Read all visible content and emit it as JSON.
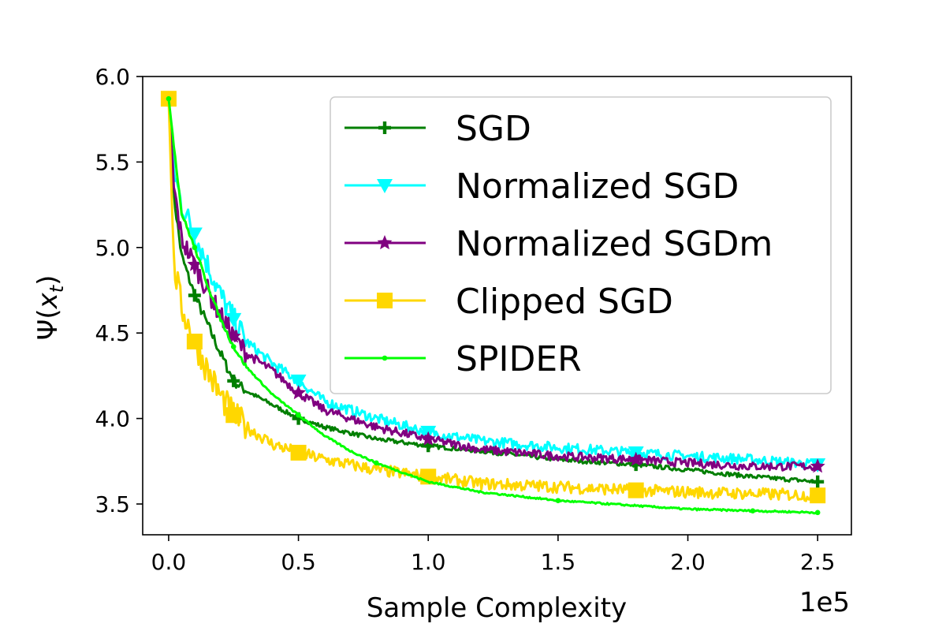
{
  "chart_data": {
    "type": "line",
    "title": "",
    "xlabel": "Sample Complexity",
    "ylabel": "Ψ(x_t)",
    "x_offset_label": "1e5",
    "xlim": [
      -0.1,
      2.63
    ],
    "ylim": [
      3.32,
      6.0
    ],
    "xticks": [
      0.0,
      0.5,
      1.0,
      1.5,
      2.0,
      2.5
    ],
    "xtick_labels": [
      "0.0",
      "0.5",
      "1.0",
      "1.5",
      "2.0",
      "2.5"
    ],
    "yticks": [
      3.5,
      4.0,
      4.5,
      5.0,
      5.5,
      6.0
    ],
    "ytick_labels": [
      "3.5",
      "4.0",
      "4.5",
      "5.0",
      "5.5",
      "6.0"
    ],
    "legend_position": "top-right",
    "series": [
      {
        "name": "SGD",
        "color": "#007f00",
        "marker": "plus",
        "x": [
          0.0,
          0.02,
          0.05,
          0.1,
          0.15,
          0.2,
          0.25,
          0.3,
          0.4,
          0.5,
          0.6,
          0.8,
          1.0,
          1.2,
          1.5,
          1.8,
          2.0,
          2.25,
          2.5
        ],
        "y": [
          5.87,
          5.3,
          4.95,
          4.72,
          4.55,
          4.38,
          4.22,
          4.16,
          4.08,
          4.0,
          3.95,
          3.88,
          3.84,
          3.81,
          3.76,
          3.73,
          3.7,
          3.66,
          3.63
        ]
      },
      {
        "name": "Normalized SGD",
        "color": "#00ffff",
        "marker": "triangle-down",
        "x": [
          0.0,
          0.02,
          0.05,
          0.1,
          0.15,
          0.2,
          0.25,
          0.3,
          0.4,
          0.5,
          0.6,
          0.8,
          1.0,
          1.2,
          1.5,
          1.8,
          2.0,
          2.25,
          2.5
        ],
        "y": [
          5.87,
          5.45,
          5.25,
          5.08,
          4.9,
          4.72,
          4.58,
          4.45,
          4.32,
          4.22,
          4.1,
          4.0,
          3.92,
          3.87,
          3.83,
          3.8,
          3.78,
          3.76,
          3.73
        ]
      },
      {
        "name": "Normalized SGDm",
        "color": "#800080",
        "marker": "star",
        "x": [
          0.0,
          0.02,
          0.05,
          0.1,
          0.15,
          0.2,
          0.25,
          0.3,
          0.4,
          0.5,
          0.6,
          0.8,
          1.0,
          1.2,
          1.5,
          1.8,
          2.0,
          2.25,
          2.5
        ],
        "y": [
          5.87,
          5.35,
          5.05,
          4.9,
          4.75,
          4.6,
          4.48,
          4.38,
          4.28,
          4.15,
          4.05,
          3.95,
          3.88,
          3.82,
          3.78,
          3.76,
          3.74,
          3.72,
          3.72
        ]
      },
      {
        "name": "Clipped SGD",
        "color": "#ffd700",
        "marker": "square",
        "x": [
          0.0,
          0.02,
          0.05,
          0.1,
          0.15,
          0.2,
          0.25,
          0.3,
          0.4,
          0.5,
          0.6,
          0.8,
          1.0,
          1.2,
          1.5,
          1.8,
          2.0,
          2.25,
          2.5
        ],
        "y": [
          5.87,
          4.9,
          4.65,
          4.45,
          4.28,
          4.13,
          4.02,
          3.95,
          3.85,
          3.8,
          3.76,
          3.7,
          3.66,
          3.62,
          3.6,
          3.58,
          3.57,
          3.56,
          3.55
        ]
      },
      {
        "name": "SPIDER",
        "color": "#00ff00",
        "marker": "dot",
        "x": [
          0.0,
          0.02,
          0.05,
          0.1,
          0.15,
          0.2,
          0.25,
          0.3,
          0.4,
          0.5,
          0.6,
          0.7,
          0.8,
          1.0,
          1.2,
          1.5,
          1.8,
          2.0,
          2.25,
          2.5
        ],
        "y": [
          5.87,
          5.6,
          5.2,
          5.0,
          4.78,
          4.58,
          4.42,
          4.3,
          4.14,
          4.02,
          3.9,
          3.81,
          3.74,
          3.63,
          3.57,
          3.52,
          3.49,
          3.47,
          3.46,
          3.45
        ]
      }
    ]
  }
}
